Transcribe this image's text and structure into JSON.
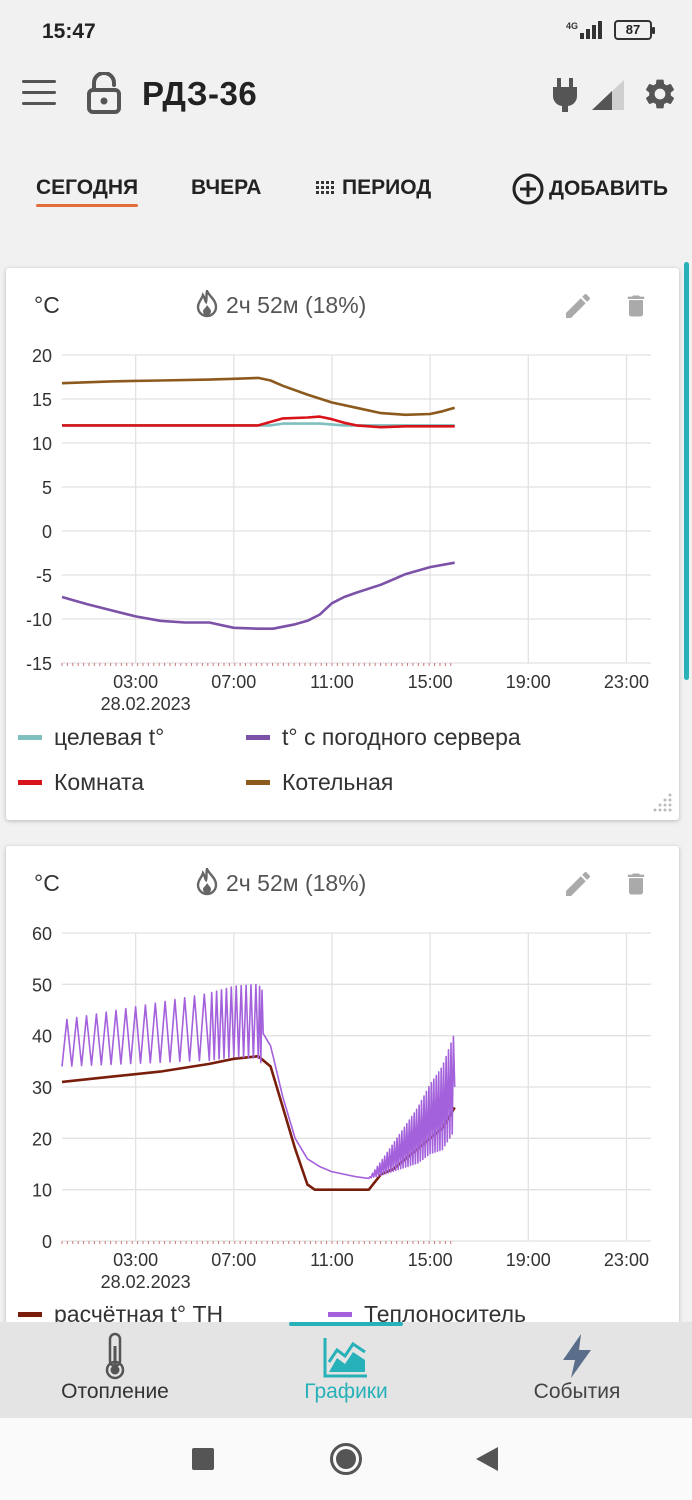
{
  "status": {
    "time": "15:47",
    "network": "4G",
    "battery": "87"
  },
  "app": {
    "title": "РДЗ-36"
  },
  "tabs": {
    "today": "СЕГОДНЯ",
    "yesterday": "ВЧЕРА",
    "period": "ПЕРИОД",
    "add": "ДОБАВИТЬ"
  },
  "cards": [
    {
      "unit": "°C",
      "stat": "2ч 52м (18%)"
    },
    {
      "unit": "°C",
      "stat": "2ч 52м (18%)"
    }
  ],
  "chart_data": [
    {
      "type": "line",
      "ylabel": "°C",
      "ylim": [
        -15,
        20
      ],
      "yticks": [
        "20",
        "15",
        "10",
        "5",
        "0",
        "-5",
        "-10",
        "-15"
      ],
      "xticks": [
        "03:00",
        "07:00",
        "11:00",
        "15:00",
        "19:00",
        "23:00"
      ],
      "xdate": "28.02.2023",
      "xlim_hours": [
        0,
        24
      ],
      "series": [
        {
          "name": "целевая t°",
          "color": "#7fbfbf",
          "points": [
            [
              0,
              12
            ],
            [
              8.5,
              12
            ],
            [
              9,
              12.2
            ],
            [
              10.5,
              12.2
            ],
            [
              11.5,
              12
            ],
            [
              16,
              12
            ]
          ]
        },
        {
          "name": "t° с погодного сервера",
          "color": "#7b52a8",
          "points": [
            [
              0,
              -7.5
            ],
            [
              1,
              -8.3
            ],
            [
              2,
              -9
            ],
            [
              3,
              -9.7
            ],
            [
              4,
              -10.2
            ],
            [
              5,
              -10.4
            ],
            [
              6,
              -10.4
            ],
            [
              7,
              -11
            ],
            [
              8,
              -11.1
            ],
            [
              8.6,
              -11.1
            ],
            [
              9.5,
              -10.6
            ],
            [
              10,
              -10.2
            ],
            [
              10.5,
              -9.5
            ],
            [
              11,
              -8.2
            ],
            [
              11.5,
              -7.5
            ],
            [
              12,
              -7
            ],
            [
              13,
              -6.1
            ],
            [
              13.5,
              -5.5
            ],
            [
              14,
              -4.9
            ],
            [
              15,
              -4.1
            ],
            [
              16,
              -3.6
            ]
          ]
        },
        {
          "name": "Комната",
          "color": "#d8141a",
          "points": [
            [
              0,
              12
            ],
            [
              2,
              12
            ],
            [
              4,
              12
            ],
            [
              6,
              12
            ],
            [
              8,
              12
            ],
            [
              9,
              12.8
            ],
            [
              10,
              12.9
            ],
            [
              10.5,
              13
            ],
            [
              11,
              12.7
            ],
            [
              11.5,
              12.3
            ],
            [
              12,
              12
            ],
            [
              13,
              11.8
            ],
            [
              14,
              11.9
            ],
            [
              16,
              11.9
            ]
          ]
        },
        {
          "name": "Котельная",
          "color": "#8d5a1e",
          "points": [
            [
              0,
              16.8
            ],
            [
              2,
              17
            ],
            [
              4,
              17.1
            ],
            [
              6,
              17.2
            ],
            [
              7,
              17.3
            ],
            [
              8,
              17.4
            ],
            [
              8.5,
              17.1
            ],
            [
              9,
              16.5
            ],
            [
              10,
              15.5
            ],
            [
              11,
              14.6
            ],
            [
              12,
              14
            ],
            [
              13,
              13.4
            ],
            [
              14,
              13.2
            ],
            [
              15,
              13.3
            ],
            [
              15.5,
              13.6
            ],
            [
              16,
              14
            ]
          ]
        }
      ]
    },
    {
      "type": "line",
      "ylabel": "°C",
      "ylim": [
        0,
        60
      ],
      "yticks": [
        "60",
        "50",
        "40",
        "30",
        "20",
        "10",
        "0"
      ],
      "xticks": [
        "03:00",
        "07:00",
        "11:00",
        "15:00",
        "19:00",
        "23:00"
      ],
      "xdate": "28.02.2023",
      "xlim_hours": [
        0,
        24
      ],
      "series": [
        {
          "name": "расчётная t° ТН",
          "color": "#7a1e0c",
          "points": [
            [
              0,
              31
            ],
            [
              2,
              32
            ],
            [
              4,
              33
            ],
            [
              6,
              34.5
            ],
            [
              7,
              35.5
            ],
            [
              8,
              36
            ],
            [
              8.5,
              34
            ],
            [
              9,
              26
            ],
            [
              9.5,
              18
            ],
            [
              10,
              11
            ],
            [
              10.3,
              10
            ],
            [
              11.5,
              10
            ],
            [
              12,
              10
            ],
            [
              12.5,
              10
            ],
            [
              13,
              13
            ],
            [
              13.5,
              14
            ],
            [
              14,
              16
            ],
            [
              14.5,
              18
            ],
            [
              15,
              20
            ],
            [
              15.5,
              22
            ],
            [
              16,
              26
            ]
          ]
        },
        {
          "name": "Теплоноситель",
          "color": "#a461dc",
          "points": [
            [
              0,
              38
            ],
            [
              2,
              39
            ],
            [
              4,
              40
            ],
            [
              6,
              41
            ],
            [
              7,
              42
            ],
            [
              8,
              42
            ],
            [
              8.5,
              38
            ],
            [
              9,
              28
            ],
            [
              9.5,
              20
            ],
            [
              10,
              16
            ],
            [
              10.5,
              14.5
            ],
            [
              11,
              13.5
            ],
            [
              11.5,
              13
            ],
            [
              12,
              12.5
            ],
            [
              12.5,
              12.2
            ],
            [
              13,
              14
            ],
            [
              13.5,
              16
            ],
            [
              14,
              18
            ],
            [
              14.5,
              20
            ],
            [
              15,
              23
            ],
            [
              15.5,
              25
            ],
            [
              16,
              30
            ]
          ]
        }
      ]
    }
  ],
  "nav": {
    "heating": "Отопление",
    "charts": "Графики",
    "events": "События"
  },
  "colors": {
    "accent": "#27b1b8",
    "tab_underline": "#e36e3a"
  }
}
